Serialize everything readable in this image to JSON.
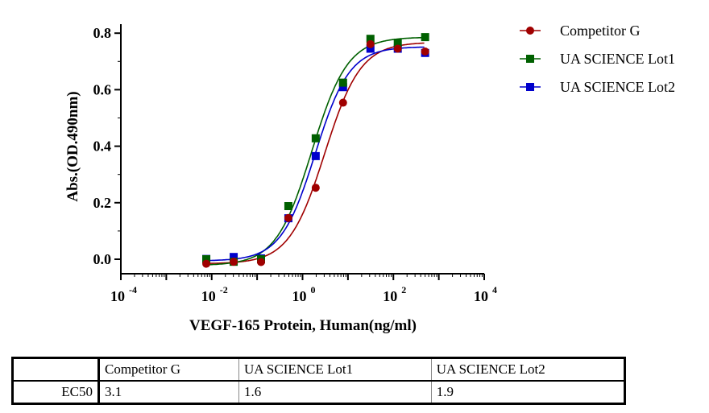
{
  "chart_data": {
    "type": "scatter",
    "xlabel": "VEGF-165 Protein, Human(ng/ml)",
    "ylabel": "Abs.(OD.490nm)",
    "xscale": "log",
    "xlim": [
      0.0001,
      10000
    ],
    "ylim": [
      -0.05,
      0.8
    ],
    "xticks": [
      {
        "exp": "-4"
      },
      {
        "exp": "-2"
      },
      {
        "exp": "0"
      },
      {
        "exp": "2"
      },
      {
        "exp": "4"
      }
    ],
    "yticks": [
      "0.0",
      "0.2",
      "0.4",
      "0.6",
      "0.8"
    ],
    "legend_position": "top-right",
    "x": [
      0.0076,
      0.0305,
      0.122,
      0.488,
      1.95,
      7.8,
      31.25,
      125,
      500
    ],
    "series": [
      {
        "name": "Competitor G",
        "color": "#a00000",
        "marker": "circle",
        "values": [
          -0.016,
          -0.009,
          -0.01,
          0.146,
          0.253,
          0.554,
          0.761,
          0.745,
          0.735
        ]
      },
      {
        "name": "UA SCIENCE Lot1",
        "color": "#006000",
        "marker": "square",
        "values": [
          0.0,
          -0.009,
          0.0,
          0.188,
          0.428,
          0.625,
          0.78,
          0.766,
          0.786
        ]
      },
      {
        "name": "UA SCIENCE Lot2",
        "color": "#0000cc",
        "marker": "square",
        "values": [
          0.001,
          0.008,
          0.003,
          0.145,
          0.365,
          0.609,
          0.745,
          0.745,
          0.73
        ]
      }
    ]
  },
  "table": {
    "headers": [
      "",
      "Competitor G",
      "UA SCIENCE Lot1",
      "UA SCIENCE Lot2"
    ],
    "row_label": "EC50",
    "values": [
      "3.1",
      "1.6",
      "1.9"
    ]
  }
}
